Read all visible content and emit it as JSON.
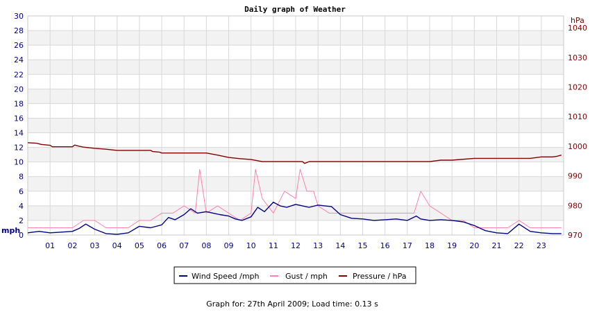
{
  "chart_data": {
    "type": "line",
    "title": "Daily graph of Weather",
    "left_axis": {
      "unit": "mph",
      "ylim": [
        0,
        30
      ],
      "ticks": [
        0,
        2,
        4,
        6,
        8,
        10,
        12,
        14,
        16,
        18,
        20,
        22,
        24,
        26,
        28,
        30
      ]
    },
    "right_axis": {
      "unit": "hPa",
      "ylim": [
        970,
        1044
      ],
      "ticks": [
        970,
        980,
        990,
        1000,
        1010,
        1020,
        1030,
        1040
      ]
    },
    "x_ticks": [
      "01",
      "02",
      "03",
      "04",
      "05",
      "06",
      "07",
      "08",
      "09",
      "10",
      "11",
      "12",
      "13",
      "14",
      "15",
      "16",
      "17",
      "18",
      "19",
      "20",
      "21",
      "22",
      "23"
    ],
    "xlim": [
      0,
      24
    ],
    "grid": "on",
    "legend_position": "bottom-center",
    "series": [
      {
        "name": "Wind Speed /mph",
        "axis": "left",
        "color": "#000080",
        "x": [
          0,
          0.5,
          1,
          1.5,
          2,
          2.3,
          2.6,
          3,
          3.5,
          4,
          4.5,
          5,
          5.5,
          6,
          6.3,
          6.6,
          7,
          7.3,
          7.6,
          8,
          8.3,
          8.6,
          9,
          9.3,
          9.6,
          10,
          10.3,
          10.6,
          11,
          11.3,
          11.6,
          12,
          12.3,
          12.6,
          13,
          13.3,
          13.6,
          14,
          14.5,
          15,
          15.5,
          16,
          16.5,
          17,
          17.2,
          17.4,
          17.6,
          18,
          18.5,
          19,
          19.5,
          20,
          20.5,
          21,
          21.5,
          22,
          22.5,
          23,
          23.5,
          23.9
        ],
        "values": [
          0.3,
          0.5,
          0.3,
          0.4,
          0.5,
          0.9,
          1.5,
          0.8,
          0.2,
          0.1,
          0.3,
          1.2,
          1.0,
          1.4,
          2.4,
          2.1,
          2.8,
          3.6,
          3.0,
          3.2,
          3.0,
          2.8,
          2.6,
          2.2,
          2.0,
          2.5,
          3.8,
          3.2,
          4.5,
          4.0,
          3.8,
          4.2,
          4.0,
          3.8,
          4.1,
          4.0,
          3.9,
          2.8,
          2.3,
          2.2,
          2.0,
          2.1,
          2.2,
          2.0,
          2.3,
          2.6,
          2.2,
          2.0,
          2.1,
          2.0,
          1.8,
          1.3,
          0.6,
          0.3,
          0.2,
          1.5,
          0.5,
          0.3,
          0.2,
          0.2
        ]
      },
      {
        "name": "Gust / mph",
        "axis": "left",
        "color": "#ff80b0",
        "x": [
          0,
          0.5,
          1,
          1.5,
          2,
          2.5,
          3,
          3.5,
          4,
          4.5,
          5,
          5.5,
          6,
          6.5,
          7,
          7.5,
          7.7,
          8,
          8.5,
          9,
          9.5,
          10,
          10.2,
          10.5,
          11,
          11.5,
          12,
          12.2,
          12.5,
          12.8,
          13,
          13.5,
          14,
          14.5,
          15,
          15.5,
          16,
          16.5,
          17,
          17.3,
          17.6,
          18,
          18.5,
          19,
          19.5,
          20,
          20.5,
          21,
          21.5,
          22,
          22.5,
          23,
          23.5,
          23.9
        ],
        "values": [
          1,
          1,
          1,
          1,
          1,
          2,
          2,
          1,
          1,
          1,
          2,
          2,
          3,
          3,
          4,
          3,
          9,
          3,
          4,
          3,
          2,
          3,
          9,
          5,
          3,
          6,
          5,
          9,
          6,
          6,
          4,
          3,
          3,
          3,
          3,
          3,
          3,
          3,
          3,
          3,
          6,
          4,
          3,
          2,
          2,
          1,
          1,
          1,
          1,
          2,
          1,
          1,
          1,
          1
        ]
      },
      {
        "name": "Pressure / hPa",
        "axis": "right",
        "color": "#800000",
        "x": [
          0,
          0.4,
          0.6,
          1,
          1.1,
          2,
          2.1,
          2.3,
          2.5,
          3,
          3.5,
          4,
          4.5,
          5,
          5.5,
          5.6,
          5.9,
          6,
          7,
          8,
          8.5,
          9,
          9.5,
          10,
          10.5,
          11,
          11.5,
          12,
          12.3,
          12.4,
          12.6,
          13,
          14,
          15,
          16,
          17,
          17.5,
          18,
          18.5,
          19,
          20,
          21,
          22,
          22.5,
          23,
          23.5,
          23.7,
          23.9
        ],
        "values": [
          1001.2,
          1001.0,
          1000.6,
          1000.3,
          999.8,
          999.8,
          1000.4,
          1000.0,
          999.7,
          999.3,
          999.0,
          998.6,
          998.6,
          998.6,
          998.6,
          998.2,
          998.0,
          997.7,
          997.7,
          997.7,
          997.0,
          996.2,
          995.8,
          995.5,
          994.8,
          994.8,
          994.8,
          994.8,
          994.8,
          994.2,
          994.8,
          994.8,
          994.8,
          994.8,
          994.8,
          994.8,
          994.8,
          994.8,
          995.3,
          995.3,
          995.9,
          995.9,
          995.9,
          995.9,
          996.4,
          996.4,
          996.6,
          997.0
        ]
      }
    ]
  },
  "footer": "Graph for: 27th April 2009; Load time: 0.13 s",
  "colors": {
    "wind": "#000080",
    "gust": "#ff80b0",
    "pressure": "#800000",
    "grid_band": "#f2f2f2",
    "grid_line": "#d8d8d8"
  }
}
